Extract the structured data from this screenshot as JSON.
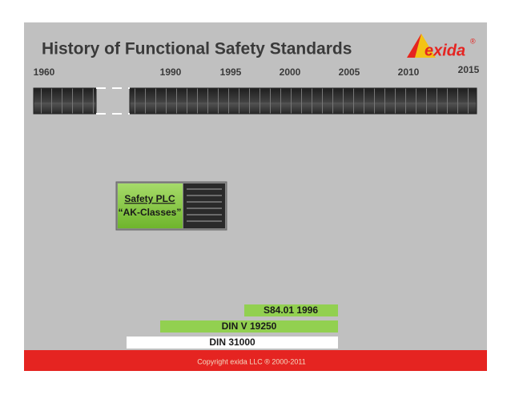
{
  "slide": {
    "title": "History of Functional Safety Standards",
    "logo": {
      "text": "exida",
      "mark": "®"
    },
    "timeline": {
      "years": [
        "1960",
        "1990",
        "1995",
        "2000",
        "2005",
        "2010",
        "2015"
      ]
    },
    "callout": {
      "line1": "Safety PLC",
      "line2": "“AK-Classes”"
    },
    "standards": [
      "S84.01 1996",
      "DIN V 19250",
      "DIN 31000"
    ],
    "footer": "Copyright exida LLC ® 2000-2011"
  }
}
